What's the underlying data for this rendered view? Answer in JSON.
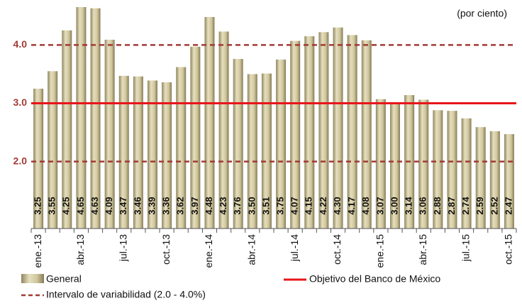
{
  "chart_data": {
    "type": "bar",
    "annotation": "(por ciento)",
    "categories": [
      "ene.-13",
      null,
      null,
      "abr.-13",
      null,
      null,
      "jul.-13",
      null,
      null,
      "oct.-13",
      null,
      null,
      "ene.-14",
      null,
      null,
      "abr.-14",
      null,
      null,
      "jul.-14",
      null,
      null,
      "oct.-14",
      null,
      null,
      "ene.-15",
      null,
      null,
      "abr.-15",
      null,
      null,
      "jul.-15",
      null,
      null,
      "oct.-15"
    ],
    "series": [
      {
        "name": "General",
        "color": "#c4bc94",
        "values": [
          3.25,
          3.55,
          4.25,
          4.65,
          4.63,
          4.09,
          3.47,
          3.46,
          3.39,
          3.36,
          3.62,
          3.97,
          4.48,
          4.23,
          3.76,
          3.5,
          3.51,
          3.75,
          4.07,
          4.15,
          4.22,
          4.3,
          4.17,
          4.08,
          3.07,
          3.0,
          3.14,
          3.06,
          2.88,
          2.87,
          2.74,
          2.59,
          2.52,
          2.47
        ],
        "value_labels": [
          "3.25",
          "3.55",
          "4.25",
          "4.65",
          "4.63",
          "4.09",
          "3.47",
          "3.46",
          "3.39",
          "3.36",
          "3.62",
          "3.97",
          "4.48",
          "4.23",
          "3.76",
          "3.50",
          "3.51",
          "3.75",
          "4.07",
          "4.15",
          "4.22",
          "4.30",
          "4.17",
          "4.08",
          "3.07",
          "3.00",
          "3.14",
          "3.06",
          "2.88",
          "2.87",
          "2.74",
          "2.59",
          "2.52",
          "2.47"
        ]
      }
    ],
    "reference_lines": [
      {
        "name": "Objetivo del Banco de México",
        "values": [
          3
        ],
        "color": "#e8161b",
        "style": "solid"
      },
      {
        "name": "Intervalo de variabilidad (2.0 - 4.0%)",
        "values": [
          2,
          4
        ],
        "color": "#a33a35",
        "style": "dashed"
      }
    ],
    "ylim": [
      0.85,
      4.65
    ],
    "yticks": [
      {
        "value": 2,
        "label": "2.0"
      },
      {
        "value": 3,
        "label": "3.0"
      },
      {
        "value": 4,
        "label": "4.0"
      }
    ]
  }
}
